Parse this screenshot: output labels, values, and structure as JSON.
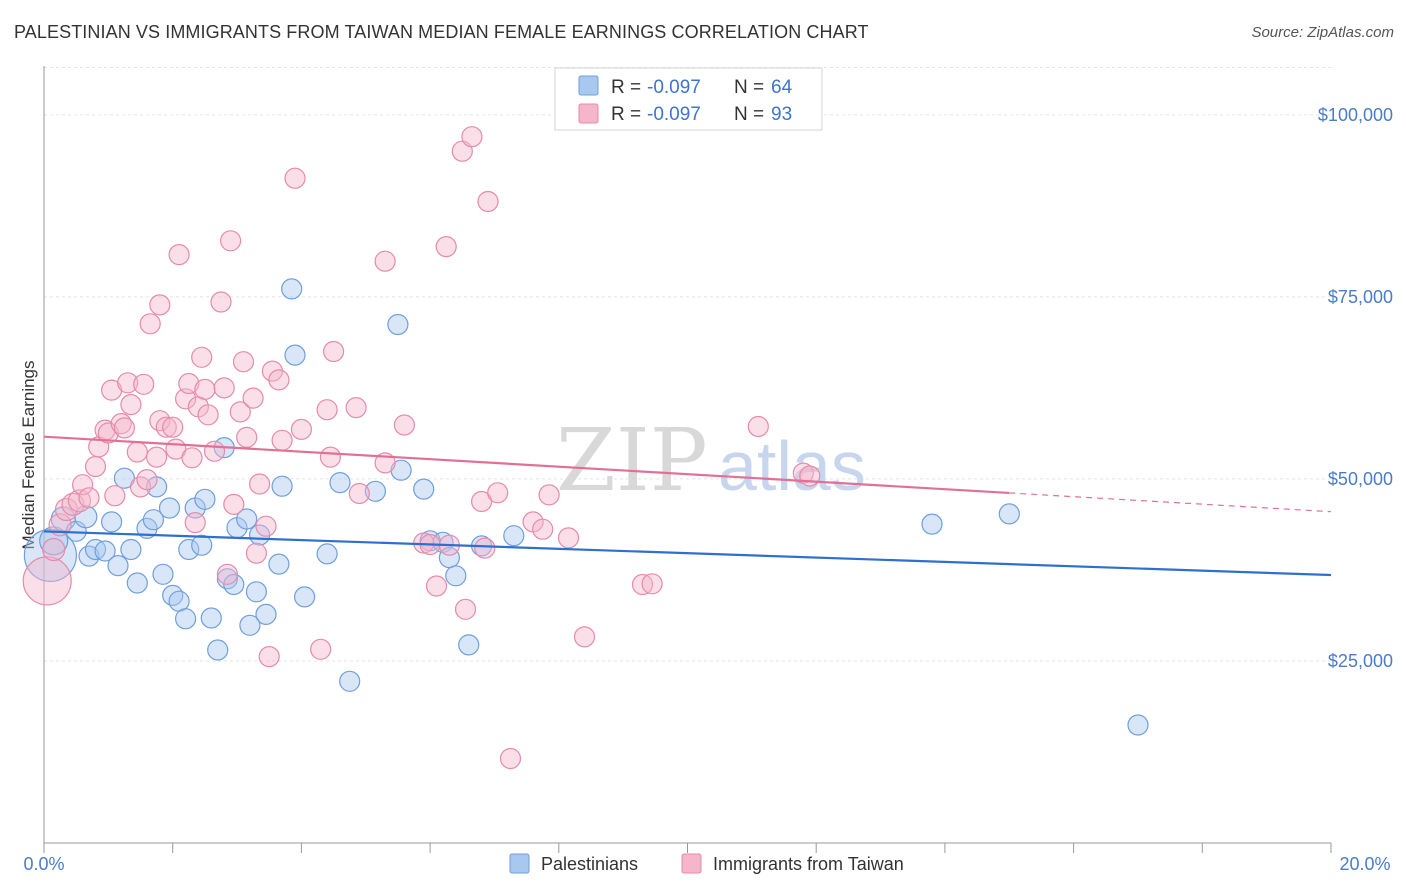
{
  "header": {
    "title": "PALESTINIAN VS IMMIGRANTS FROM TAIWAN MEDIAN FEMALE EARNINGS CORRELATION CHART",
    "source": "Source: ZipAtlas.com"
  },
  "watermark": {
    "zip": "ZIP",
    "atlas": "atlas"
  },
  "legend": {
    "rows": [
      {
        "r_label": "R = ",
        "r_value": "-0.097",
        "n_label": "N = ",
        "n_value": "64",
        "color": "#a9c8ef"
      },
      {
        "r_label": "R = ",
        "r_value": "-0.097",
        "n_label": "N = ",
        "n_value": "93",
        "color": "#f5b6cb"
      }
    ]
  },
  "colors": {
    "blue_fill": "#a9c8ef",
    "blue_stroke": "#6f9fdc",
    "blue_line": "#2f6fd0",
    "pink_fill": "#f5b6cb",
    "pink_stroke": "#e88aaa",
    "pink_line": "#e07098",
    "grid": "#e3e3e3",
    "axis": "#999999"
  },
  "chart_data": {
    "type": "scatter",
    "ylabel": "Median Female Earnings",
    "xlim": [
      0,
      20
    ],
    "ylim": [
      0,
      106500
    ],
    "x_tick_labels": [
      "0.0%",
      "20.0%"
    ],
    "y_ticks": [
      25000,
      50000,
      75000,
      100000
    ],
    "y_tick_labels": [
      "$25,000",
      "$50,000",
      "$75,000",
      "$100,000"
    ],
    "grid": "horizontal dashed",
    "legend_position": "top-center",
    "series": [
      {
        "name": "Palestinians",
        "color": "#a9c8ef",
        "trend": {
          "x": [
            0,
            20
          ],
          "y": [
            42800,
            36800
          ],
          "dashed_from": null
        },
        "points": [
          [
            0.1,
            39500,
            26
          ],
          [
            0.15,
            41500,
            14
          ],
          [
            0.3,
            44500,
            12
          ],
          [
            0.5,
            42800,
            10
          ],
          [
            0.65,
            44800,
            11
          ],
          [
            0.7,
            39400,
            10
          ],
          [
            0.8,
            40300,
            10
          ],
          [
            0.95,
            40100,
            10
          ],
          [
            1.05,
            44100,
            10
          ],
          [
            1.15,
            38100,
            10
          ],
          [
            1.25,
            50100,
            10
          ],
          [
            1.35,
            40300,
            10
          ],
          [
            1.45,
            35700,
            10
          ],
          [
            1.6,
            43200,
            10
          ],
          [
            1.7,
            44400,
            10
          ],
          [
            1.75,
            48900,
            10
          ],
          [
            1.85,
            36900,
            10
          ],
          [
            1.95,
            46000,
            10
          ],
          [
            2.0,
            34000,
            10
          ],
          [
            2.1,
            33200,
            10
          ],
          [
            2.2,
            30800,
            10
          ],
          [
            2.25,
            40300,
            10
          ],
          [
            2.35,
            46000,
            10
          ],
          [
            2.45,
            40900,
            10
          ],
          [
            2.5,
            47200,
            10
          ],
          [
            2.6,
            30900,
            10
          ],
          [
            2.7,
            26500,
            10
          ],
          [
            2.8,
            54300,
            10
          ],
          [
            2.85,
            36300,
            10
          ],
          [
            2.95,
            35500,
            10
          ],
          [
            3.0,
            43300,
            10
          ],
          [
            3.15,
            44500,
            10
          ],
          [
            3.2,
            29900,
            10
          ],
          [
            3.3,
            34500,
            10
          ],
          [
            3.35,
            42300,
            10
          ],
          [
            3.45,
            31400,
            10
          ],
          [
            3.65,
            38300,
            10
          ],
          [
            3.7,
            49000,
            10
          ],
          [
            3.85,
            76100,
            10
          ],
          [
            3.9,
            67000,
            10
          ],
          [
            4.05,
            33800,
            10
          ],
          [
            4.4,
            39700,
            10
          ],
          [
            4.6,
            49500,
            10
          ],
          [
            4.75,
            22200,
            10
          ],
          [
            5.15,
            48300,
            10
          ],
          [
            5.5,
            71200,
            10
          ],
          [
            5.55,
            51200,
            10
          ],
          [
            5.9,
            48600,
            10
          ],
          [
            6.0,
            41500,
            10
          ],
          [
            6.2,
            41300,
            10
          ],
          [
            6.3,
            39200,
            10
          ],
          [
            6.4,
            36700,
            10
          ],
          [
            6.6,
            27200,
            10
          ],
          [
            6.8,
            40800,
            10
          ],
          [
            7.3,
            42200,
            10
          ],
          [
            13.8,
            43800,
            10
          ],
          [
            15.0,
            45200,
            10
          ],
          [
            17.0,
            16200,
            10
          ]
        ]
      },
      {
        "name": "Immigrants from Taiwan",
        "color": "#f5b6cb",
        "trend": {
          "x": [
            0,
            20
          ],
          "y": [
            55800,
            45500
          ],
          "dashed_from": 15
        },
        "points": [
          [
            0.05,
            36000,
            24
          ],
          [
            0.15,
            40300,
            11
          ],
          [
            0.25,
            43700,
            11
          ],
          [
            0.35,
            45800,
            11
          ],
          [
            0.45,
            46500,
            11
          ],
          [
            0.55,
            47000,
            11
          ],
          [
            0.6,
            49200,
            10
          ],
          [
            0.7,
            47400,
            10
          ],
          [
            0.8,
            51700,
            10
          ],
          [
            0.85,
            54400,
            10
          ],
          [
            0.95,
            56700,
            10
          ],
          [
            1.0,
            56300,
            10
          ],
          [
            1.05,
            62200,
            10
          ],
          [
            1.1,
            47700,
            10
          ],
          [
            1.2,
            57600,
            10
          ],
          [
            1.25,
            57000,
            10
          ],
          [
            1.3,
            63200,
            10
          ],
          [
            1.35,
            60200,
            10
          ],
          [
            1.45,
            53700,
            10
          ],
          [
            1.5,
            48900,
            10
          ],
          [
            1.55,
            63000,
            10
          ],
          [
            1.6,
            49900,
            10
          ],
          [
            1.65,
            71300,
            10
          ],
          [
            1.75,
            53000,
            10
          ],
          [
            1.8,
            58000,
            10
          ],
          [
            1.8,
            73900,
            10
          ],
          [
            1.9,
            57100,
            10
          ],
          [
            2.0,
            57100,
            10
          ],
          [
            2.05,
            54100,
            10
          ],
          [
            2.1,
            80800,
            10
          ],
          [
            2.2,
            61000,
            10
          ],
          [
            2.25,
            63100,
            10
          ],
          [
            2.3,
            52900,
            10
          ],
          [
            2.35,
            44000,
            10
          ],
          [
            2.4,
            59900,
            10
          ],
          [
            2.45,
            66700,
            10
          ],
          [
            2.5,
            62300,
            10
          ],
          [
            2.55,
            58800,
            10
          ],
          [
            2.65,
            53800,
            10
          ],
          [
            2.75,
            74300,
            10
          ],
          [
            2.8,
            62500,
            10
          ],
          [
            2.85,
            36900,
            10
          ],
          [
            2.9,
            82700,
            10
          ],
          [
            2.95,
            46500,
            10
          ],
          [
            3.05,
            59200,
            10
          ],
          [
            3.1,
            66100,
            10
          ],
          [
            3.15,
            55700,
            10
          ],
          [
            3.25,
            61100,
            10
          ],
          [
            3.3,
            39800,
            10
          ],
          [
            3.35,
            49300,
            10
          ],
          [
            3.45,
            43500,
            10
          ],
          [
            3.5,
            25600,
            10
          ],
          [
            3.55,
            64800,
            10
          ],
          [
            3.65,
            63600,
            10
          ],
          [
            3.7,
            55300,
            10
          ],
          [
            3.9,
            91300,
            10
          ],
          [
            4.0,
            56800,
            10
          ],
          [
            4.3,
            26600,
            10
          ],
          [
            4.4,
            59500,
            10
          ],
          [
            4.45,
            53000,
            10
          ],
          [
            4.5,
            67500,
            10
          ],
          [
            4.85,
            59800,
            10
          ],
          [
            4.9,
            48000,
            10
          ],
          [
            5.3,
            52200,
            10
          ],
          [
            5.3,
            79900,
            10
          ],
          [
            5.6,
            57400,
            10
          ],
          [
            5.9,
            41200,
            10
          ],
          [
            6.0,
            41000,
            10
          ],
          [
            6.1,
            35300,
            10
          ],
          [
            6.25,
            81900,
            10
          ],
          [
            6.3,
            40900,
            10
          ],
          [
            6.5,
            95000,
            10
          ],
          [
            6.55,
            32100,
            10
          ],
          [
            6.65,
            97000,
            10
          ],
          [
            6.8,
            46900,
            10
          ],
          [
            6.85,
            40500,
            10
          ],
          [
            6.9,
            88100,
            10
          ],
          [
            7.05,
            48100,
            10
          ],
          [
            7.25,
            11600,
            10
          ],
          [
            7.6,
            44100,
            10
          ],
          [
            7.75,
            43100,
            10
          ],
          [
            7.85,
            47800,
            10
          ],
          [
            8.15,
            41900,
            10
          ],
          [
            8.4,
            28300,
            10
          ],
          [
            9.3,
            35500,
            10
          ],
          [
            9.45,
            35600,
            10
          ],
          [
            11.1,
            57200,
            10
          ],
          [
            11.8,
            50800,
            10
          ],
          [
            11.9,
            50400,
            10
          ]
        ]
      }
    ]
  },
  "bottom_legend": {
    "items": [
      {
        "label": "Palestinians",
        "color": "#a9c8ef"
      },
      {
        "label": "Immigrants from Taiwan",
        "color": "#f5b6cb"
      }
    ]
  }
}
